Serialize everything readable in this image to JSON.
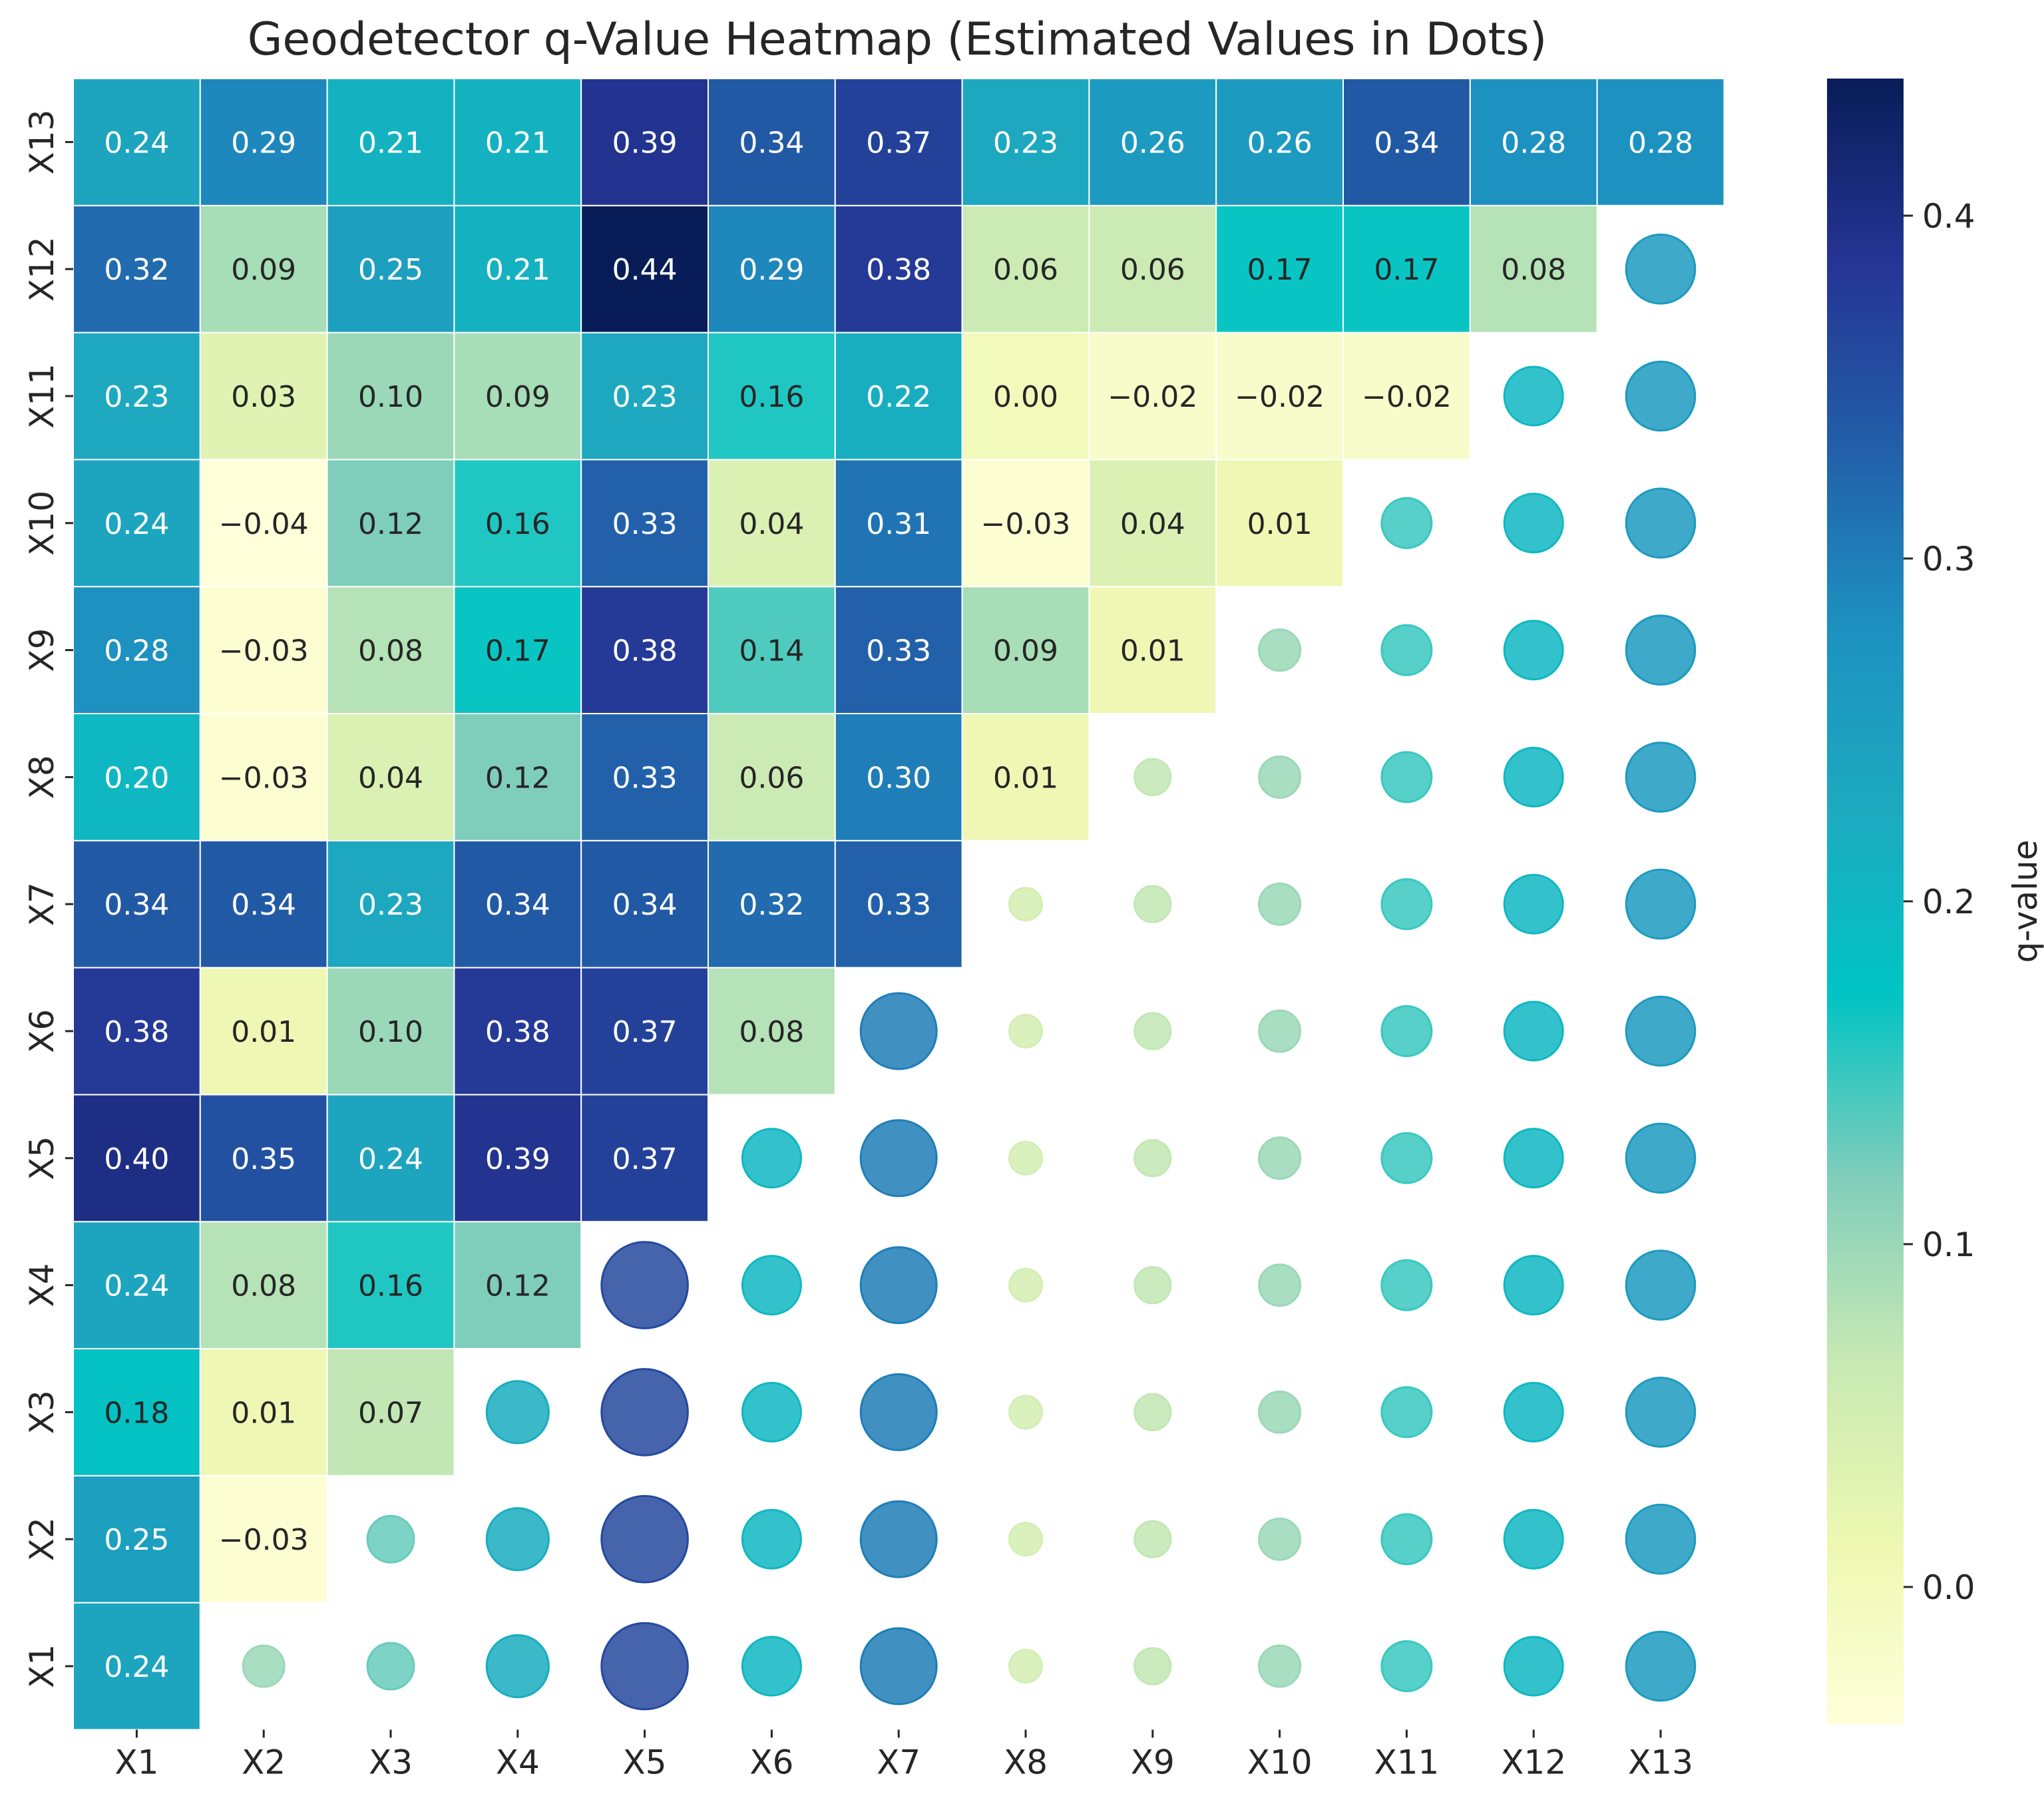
{
  "chart_data": {
    "type": "heatmap",
    "title": "Geodetector q-Value Heatmap (Estimated Values in Dots)",
    "xlabel": "",
    "ylabel": "",
    "x_categories": [
      "X1",
      "X2",
      "X3",
      "X4",
      "X5",
      "X6",
      "X7",
      "X8",
      "X9",
      "X10",
      "X11",
      "X12",
      "X13"
    ],
    "y_categories": [
      "X1",
      "X2",
      "X3",
      "X4",
      "X5",
      "X6",
      "X7",
      "X8",
      "X9",
      "X10",
      "X11",
      "X12",
      "X13"
    ],
    "y_order": "bottom-to-top",
    "lower_triangle_note": "Cells with column <= row are colored squares with printed q-values; cells with column > row show circles sized and colored by estimated value.",
    "rows": [
      {
        "label": "X1",
        "values": [
          "0.24"
        ]
      },
      {
        "label": "X2",
        "values": [
          "0.25",
          "−0.03"
        ]
      },
      {
        "label": "X3",
        "values": [
          "0.18",
          "0.01",
          "0.07"
        ]
      },
      {
        "label": "X4",
        "values": [
          "0.24",
          "0.08",
          "0.16",
          "0.12"
        ]
      },
      {
        "label": "X5",
        "values": [
          "0.40",
          "0.35",
          "0.24",
          "0.39",
          "0.37"
        ]
      },
      {
        "label": "X6",
        "values": [
          "0.38",
          "0.01",
          "0.10",
          "0.38",
          "0.37",
          "0.08"
        ]
      },
      {
        "label": "X7",
        "values": [
          "0.34",
          "0.34",
          "0.23",
          "0.34",
          "0.34",
          "0.32",
          "0.33"
        ]
      },
      {
        "label": "X8",
        "values": [
          "0.20",
          "−0.03",
          "0.04",
          "0.12",
          "0.33",
          "0.06",
          "0.30",
          "0.01"
        ]
      },
      {
        "label": "X9",
        "values": [
          "0.28",
          "−0.03",
          "0.08",
          "0.17",
          "0.38",
          "0.14",
          "0.33",
          "0.09",
          "0.01"
        ]
      },
      {
        "label": "X10",
        "values": [
          "0.24",
          "−0.04",
          "0.12",
          "0.16",
          "0.33",
          "0.04",
          "0.31",
          "−0.03",
          "0.04",
          "0.01"
        ]
      },
      {
        "label": "X11",
        "values": [
          "0.23",
          "0.03",
          "0.10",
          "0.09",
          "0.23",
          "0.16",
          "0.22",
          "0.00",
          "−0.02",
          "−0.02",
          "−0.02"
        ]
      },
      {
        "label": "X12",
        "values": [
          "0.32",
          "0.09",
          "0.25",
          "0.21",
          "0.44",
          "0.29",
          "0.38",
          "0.06",
          "0.06",
          "0.17",
          "0.17",
          "0.08"
        ]
      },
      {
        "label": "X13",
        "values": [
          "0.24",
          "0.29",
          "0.21",
          "0.21",
          "0.39",
          "0.34",
          "0.37",
          "0.23",
          "0.26",
          "0.26",
          "0.34",
          "0.28",
          "0.28"
        ]
      }
    ],
    "dot_column_values": {
      "X2": 0.1,
      "X3": 0.13,
      "X4": 0.22,
      "X5": 0.36,
      "X6": 0.2,
      "X7": 0.3,
      "X8": 0.05,
      "X9": 0.07,
      "X10": 0.1,
      "X11": 0.15,
      "X12": 0.2,
      "X13": 0.26
    },
    "colorbar": {
      "label": "q-value",
      "colormap": "YlGnBu",
      "vmin": -0.04,
      "vmax": 0.44,
      "ticks": [
        "0.0",
        "0.1",
        "0.2",
        "0.3",
        "0.4"
      ],
      "tick_values": [
        0.0,
        0.1,
        0.2,
        0.3,
        0.4
      ],
      "stops": [
        "#ffffd9",
        "#edf8b1",
        "#c7e9b4",
        "#7fcdbb",
        "#00c4c4",
        "#1daabf",
        "#1d91c0",
        "#225ea8",
        "#253494",
        "#081d58"
      ]
    },
    "grid": true,
    "legend": "colorbar-right"
  }
}
